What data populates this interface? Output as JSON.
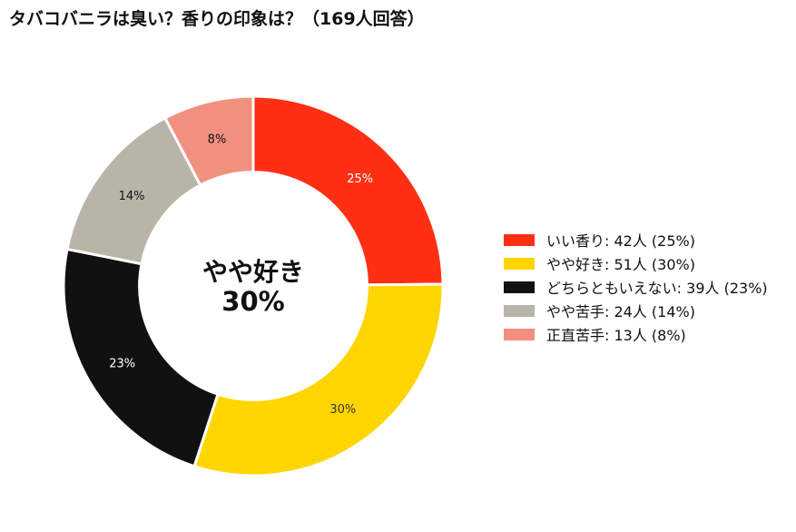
{
  "title": "タバコバニラは臭い？香りの印象は？（169人回答）",
  "chart_data": {
    "type": "pie",
    "title": "タバコバニラは臭い？香りの印象は？（169人回答）",
    "total": 169,
    "center_label": {
      "name": "やや好き",
      "percent": "30%"
    },
    "categories": [
      "いい香り",
      "やや好き",
      "どちらともいえない",
      "やや苦手",
      "正直苦手"
    ],
    "values": [
      42,
      51,
      39,
      24,
      13
    ],
    "percent_labels": [
      "25%",
      "30%",
      "23%",
      "14%",
      "8%"
    ],
    "colors": [
      "#ff2f14",
      "#ffd500",
      "#111111",
      "#b8b4a8",
      "#f29080"
    ],
    "label_colors": [
      "#ffffff",
      "#333333",
      "#ffffff",
      "#111111",
      "#111111"
    ],
    "legend": [
      "いい香り:  42人 (25%)",
      "やや好き:  51人 (30%)",
      "どちらともいえない:  39人 (23%)",
      "やや苦手:  24人 (14%)",
      "正直苦手:  13人 (8%)"
    ],
    "legend_position": "right",
    "start_angle": "12 o'clock",
    "direction": "clockwise",
    "hole": 0.6
  }
}
